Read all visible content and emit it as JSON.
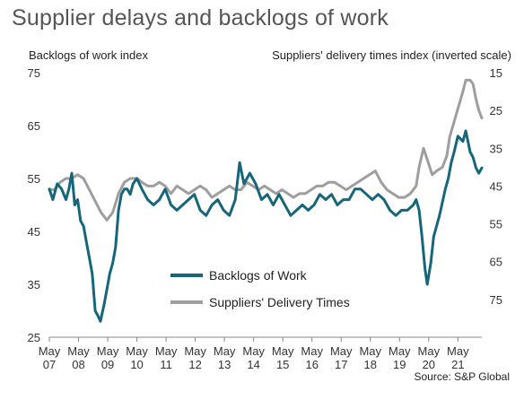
{
  "chart_data": {
    "type": "line",
    "title": "Supplier delays and backlogs of work",
    "ylabel_left": "Backlogs of work index",
    "ylabel_right": "Suppliers' delivery times index (inverted scale)",
    "source": "Source: S&P Global",
    "x_ticks": [
      {
        "t": 2007.33,
        "month": "May",
        "year": "07"
      },
      {
        "t": 2008.33,
        "month": "May",
        "year": "08"
      },
      {
        "t": 2009.33,
        "month": "May",
        "year": "09"
      },
      {
        "t": 2010.33,
        "month": "May",
        "year": "10"
      },
      {
        "t": 2011.33,
        "month": "May",
        "year": "11"
      },
      {
        "t": 2012.33,
        "month": "May",
        "year": "12"
      },
      {
        "t": 2013.33,
        "month": "May",
        "year": "13"
      },
      {
        "t": 2014.33,
        "month": "May",
        "year": "14"
      },
      {
        "t": 2015.33,
        "month": "May",
        "year": "15"
      },
      {
        "t": 2016.33,
        "month": "May",
        "year": "16"
      },
      {
        "t": 2017.33,
        "month": "May",
        "year": "17"
      },
      {
        "t": 2018.33,
        "month": "May",
        "year": "18"
      },
      {
        "t": 2019.33,
        "month": "May",
        "year": "19"
      },
      {
        "t": 2020.33,
        "month": "May",
        "year": "20"
      },
      {
        "t": 2021.33,
        "month": "May",
        "year": "21"
      }
    ],
    "xlim": [
      2007.33,
      2022.15
    ],
    "y_left": {
      "min": 25,
      "max": 75,
      "ticks": [
        75,
        65,
        55,
        45,
        35,
        25
      ]
    },
    "y_right": {
      "min": 15,
      "max": 85,
      "inverted": true,
      "ticks": [
        15,
        25,
        35,
        45,
        55,
        65,
        75
      ]
    },
    "series": [
      {
        "name": "Backlogs of Work",
        "color": "#16667a",
        "axis": "left",
        "points": [
          [
            2007.33,
            53
          ],
          [
            2007.45,
            51
          ],
          [
            2007.6,
            54
          ],
          [
            2007.75,
            53
          ],
          [
            2007.9,
            51
          ],
          [
            2008.0,
            53
          ],
          [
            2008.1,
            56
          ],
          [
            2008.2,
            50
          ],
          [
            2008.3,
            51
          ],
          [
            2008.4,
            47
          ],
          [
            2008.5,
            46
          ],
          [
            2008.6,
            43
          ],
          [
            2008.7,
            40
          ],
          [
            2008.8,
            37
          ],
          [
            2008.9,
            30
          ],
          [
            2009.0,
            29
          ],
          [
            2009.08,
            28
          ],
          [
            2009.2,
            31
          ],
          [
            2009.3,
            34
          ],
          [
            2009.4,
            37
          ],
          [
            2009.5,
            39
          ],
          [
            2009.6,
            42
          ],
          [
            2009.7,
            49
          ],
          [
            2009.8,
            52
          ],
          [
            2009.9,
            53
          ],
          [
            2010.0,
            53
          ],
          [
            2010.1,
            52
          ],
          [
            2010.2,
            54
          ],
          [
            2010.33,
            55
          ],
          [
            2010.5,
            53
          ],
          [
            2010.7,
            51
          ],
          [
            2010.9,
            50
          ],
          [
            2011.1,
            51
          ],
          [
            2011.3,
            53
          ],
          [
            2011.5,
            50
          ],
          [
            2011.7,
            49
          ],
          [
            2011.9,
            50
          ],
          [
            2012.1,
            51
          ],
          [
            2012.3,
            52
          ],
          [
            2012.5,
            49
          ],
          [
            2012.7,
            48
          ],
          [
            2012.9,
            50
          ],
          [
            2013.1,
            51
          ],
          [
            2013.3,
            49
          ],
          [
            2013.5,
            48
          ],
          [
            2013.7,
            51
          ],
          [
            2013.85,
            58
          ],
          [
            2014.0,
            54
          ],
          [
            2014.2,
            56
          ],
          [
            2014.4,
            54
          ],
          [
            2014.6,
            51
          ],
          [
            2014.8,
            52
          ],
          [
            2015.0,
            50
          ],
          [
            2015.2,
            52
          ],
          [
            2015.4,
            50
          ],
          [
            2015.6,
            48
          ],
          [
            2015.8,
            49
          ],
          [
            2016.0,
            50
          ],
          [
            2016.2,
            49
          ],
          [
            2016.4,
            50
          ],
          [
            2016.6,
            52
          ],
          [
            2016.8,
            51
          ],
          [
            2017.0,
            52
          ],
          [
            2017.2,
            50
          ],
          [
            2017.4,
            51
          ],
          [
            2017.6,
            51
          ],
          [
            2017.8,
            53
          ],
          [
            2018.0,
            53
          ],
          [
            2018.2,
            52
          ],
          [
            2018.4,
            51
          ],
          [
            2018.6,
            52
          ],
          [
            2018.8,
            51
          ],
          [
            2019.0,
            49
          ],
          [
            2019.2,
            48
          ],
          [
            2019.4,
            49
          ],
          [
            2019.6,
            49
          ],
          [
            2019.8,
            50
          ],
          [
            2019.9,
            51
          ],
          [
            2020.0,
            49
          ],
          [
            2020.1,
            44
          ],
          [
            2020.2,
            38
          ],
          [
            2020.28,
            35
          ],
          [
            2020.4,
            39
          ],
          [
            2020.5,
            44
          ],
          [
            2020.7,
            48
          ],
          [
            2020.9,
            53
          ],
          [
            2021.0,
            55
          ],
          [
            2021.1,
            58
          ],
          [
            2021.2,
            60
          ],
          [
            2021.33,
            63
          ],
          [
            2021.5,
            62
          ],
          [
            2021.6,
            64
          ],
          [
            2021.75,
            60
          ],
          [
            2021.85,
            59
          ],
          [
            2021.95,
            57
          ],
          [
            2022.05,
            56
          ],
          [
            2022.15,
            57
          ]
        ]
      },
      {
        "name": "Suppliers' Delivery Times",
        "color": "#9e9e9e",
        "axis": "right",
        "points": [
          [
            2007.33,
            46
          ],
          [
            2007.5,
            46
          ],
          [
            2007.7,
            44
          ],
          [
            2007.9,
            43
          ],
          [
            2008.1,
            43
          ],
          [
            2008.3,
            42
          ],
          [
            2008.5,
            43
          ],
          [
            2008.7,
            46
          ],
          [
            2008.9,
            49
          ],
          [
            2009.1,
            52
          ],
          [
            2009.3,
            54
          ],
          [
            2009.5,
            52
          ],
          [
            2009.7,
            47
          ],
          [
            2009.9,
            44
          ],
          [
            2010.1,
            43
          ],
          [
            2010.33,
            43
          ],
          [
            2010.5,
            44
          ],
          [
            2010.7,
            45
          ],
          [
            2010.9,
            45
          ],
          [
            2011.1,
            44
          ],
          [
            2011.3,
            45
          ],
          [
            2011.5,
            47
          ],
          [
            2011.7,
            45
          ],
          [
            2011.9,
            46
          ],
          [
            2012.1,
            47
          ],
          [
            2012.3,
            46
          ],
          [
            2012.5,
            45
          ],
          [
            2012.7,
            46
          ],
          [
            2012.9,
            48
          ],
          [
            2013.1,
            47
          ],
          [
            2013.3,
            46
          ],
          [
            2013.5,
            45
          ],
          [
            2013.7,
            46
          ],
          [
            2013.9,
            46
          ],
          [
            2014.1,
            44
          ],
          [
            2014.3,
            45
          ],
          [
            2014.5,
            46
          ],
          [
            2014.7,
            45
          ],
          [
            2014.9,
            46
          ],
          [
            2015.1,
            47
          ],
          [
            2015.3,
            46
          ],
          [
            2015.5,
            47
          ],
          [
            2015.7,
            48
          ],
          [
            2015.9,
            47
          ],
          [
            2016.1,
            47
          ],
          [
            2016.3,
            46
          ],
          [
            2016.5,
            45
          ],
          [
            2016.7,
            45
          ],
          [
            2016.9,
            44
          ],
          [
            2017.1,
            44
          ],
          [
            2017.3,
            45
          ],
          [
            2017.5,
            46
          ],
          [
            2017.7,
            45
          ],
          [
            2017.9,
            44
          ],
          [
            2018.1,
            43
          ],
          [
            2018.3,
            42
          ],
          [
            2018.5,
            41
          ],
          [
            2018.7,
            44
          ],
          [
            2018.9,
            46
          ],
          [
            2019.1,
            47
          ],
          [
            2019.3,
            48
          ],
          [
            2019.5,
            48
          ],
          [
            2019.7,
            47
          ],
          [
            2019.9,
            45
          ],
          [
            2020.0,
            40
          ],
          [
            2020.15,
            35
          ],
          [
            2020.28,
            38
          ],
          [
            2020.45,
            42
          ],
          [
            2020.6,
            41
          ],
          [
            2020.8,
            40
          ],
          [
            2020.95,
            37
          ],
          [
            2021.05,
            32
          ],
          [
            2021.2,
            28
          ],
          [
            2021.35,
            24
          ],
          [
            2021.5,
            20
          ],
          [
            2021.6,
            17
          ],
          [
            2021.75,
            17
          ],
          [
            2021.85,
            18
          ],
          [
            2021.95,
            22
          ],
          [
            2022.05,
            25
          ],
          [
            2022.15,
            27
          ]
        ]
      }
    ],
    "legend": {
      "placement": "bottom-center"
    }
  }
}
